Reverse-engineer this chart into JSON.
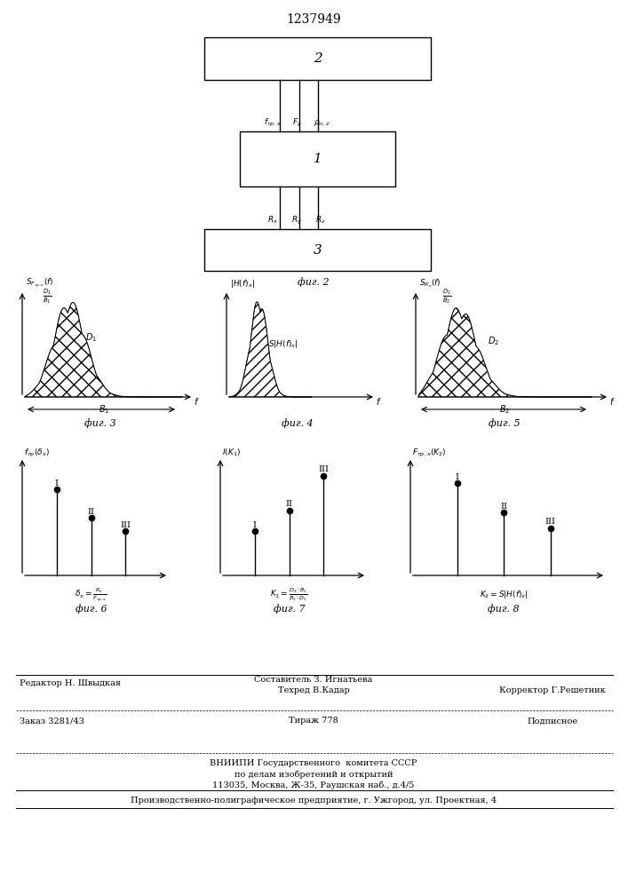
{
  "title": "1237949",
  "bg_color": "#ffffff",
  "fig2_label": "фиг. 2",
  "fig3_label": "фиг. 3",
  "fig4_label": "фиг. 4",
  "fig5_label": "фиг. 5",
  "fig6_label": "фиг. 6",
  "fig7_label": "фиг. 7",
  "fig8_label": "фиг. 8",
  "footer_line1_left": "Редактор Н. Швыдкая",
  "footer_line1_center": "Составитель З. Игнатьева",
  "footer_line2_center": "Техред В.Кадар",
  "footer_line2_right": "Корректор Г.Решетник",
  "footer_order": "Заказ 3281/43",
  "footer_tirazh": "Тираж 778",
  "footer_podp": "Подписное",
  "footer_vnipi": "ВНИИПИ Государственного  комитета СССР",
  "footer_po": "по делам изобретений и открытий",
  "footer_addr": "113035, Москва, Ж-35, Раушская наб., д.4/5",
  "footer_prod": "Производственно-полиграфическое предприятие, г. Ужгород, ул. Проектная, 4"
}
